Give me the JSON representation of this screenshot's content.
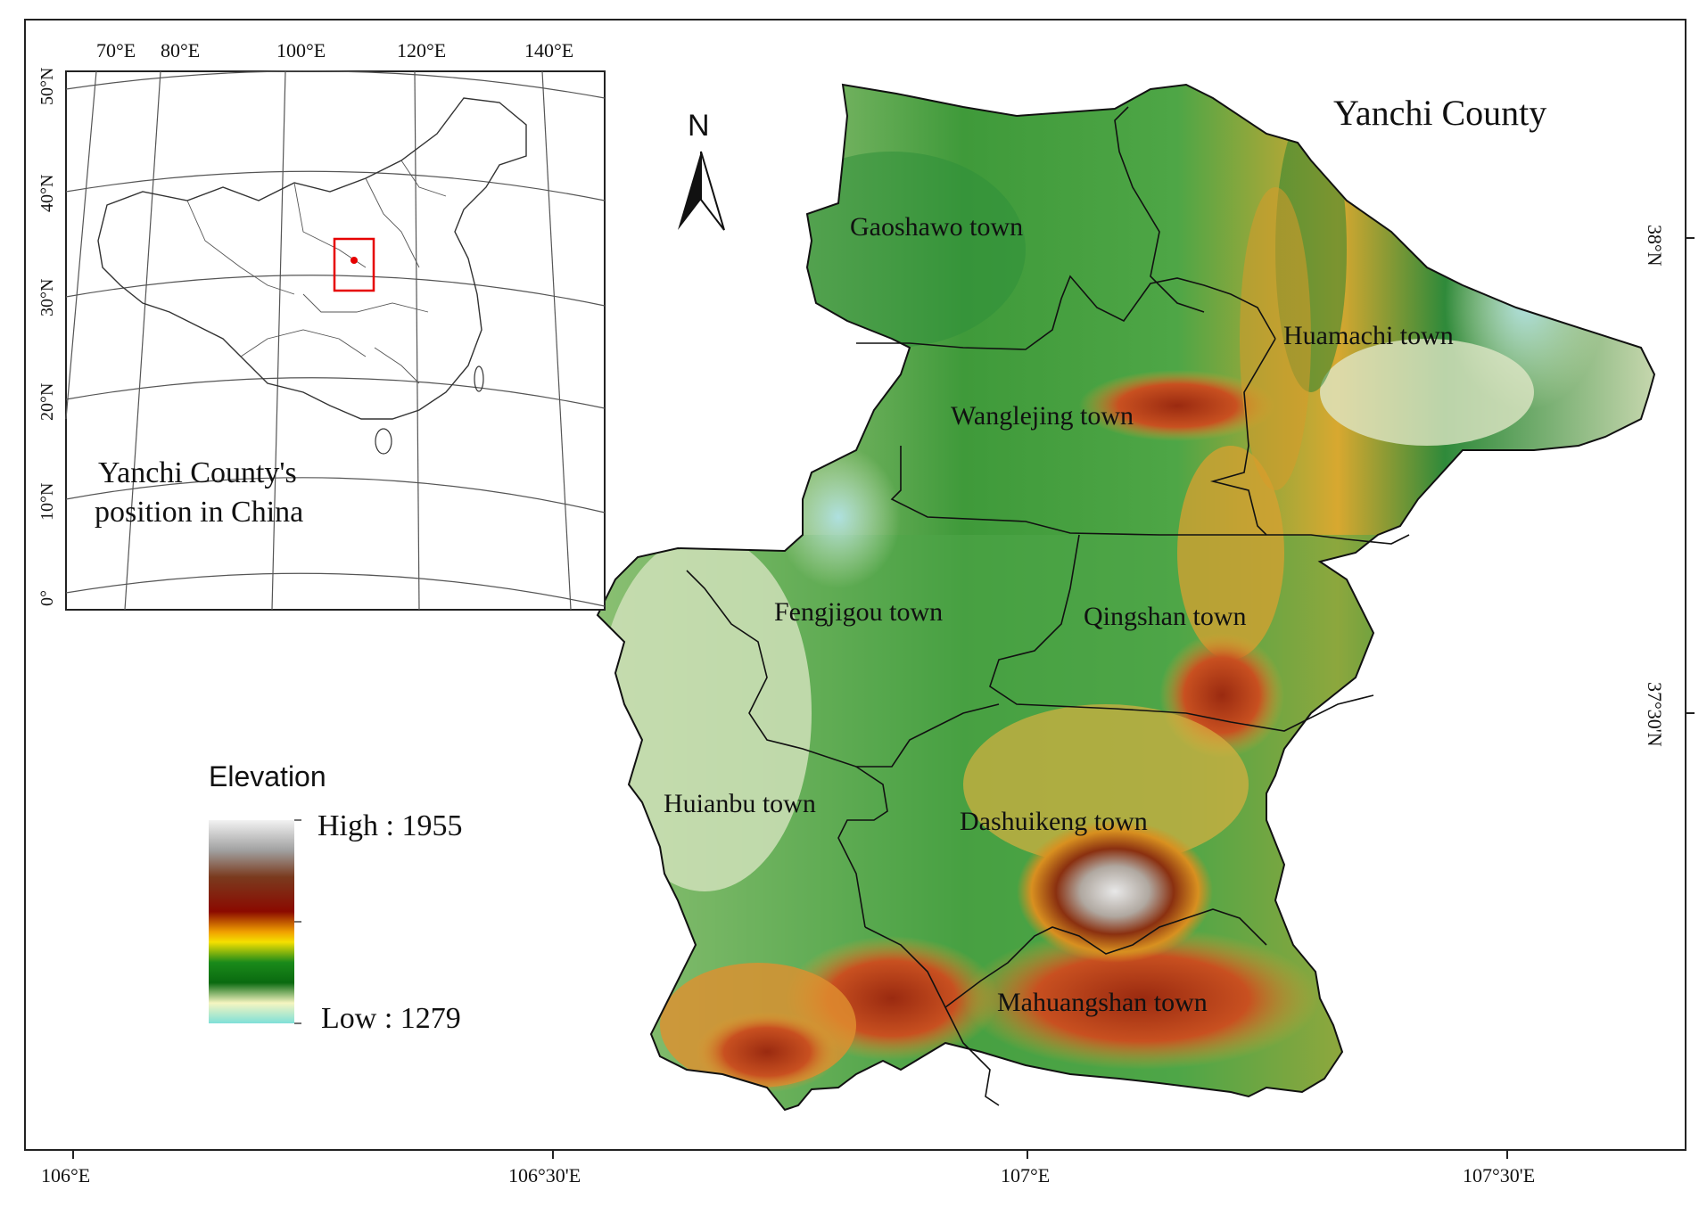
{
  "map": {
    "title": "Yanchi County",
    "north_label": "N",
    "bottom_ticks": [
      "106°E",
      "106°30'E",
      "107°E",
      "107°30'E"
    ],
    "right_ticks": [
      "38°N",
      "37°30'N"
    ],
    "towns": [
      "Gaoshawo town",
      "Huamachi town",
      "Wanglejing town",
      "Fengjigou town",
      "Qingshan town",
      "Huianbu town",
      "Dashuikeng town",
      "Mahuangshan town"
    ]
  },
  "inset": {
    "caption_line1": "Yanchi County's",
    "caption_line2": "position in China",
    "top_ticks": [
      "70°E",
      "80°E",
      "100°E",
      "120°E",
      "140°E"
    ],
    "left_ticks": [
      "50°N",
      "40°N",
      "30°N",
      "20°N",
      "10°N",
      "0°"
    ],
    "highlight_color": "#e60000"
  },
  "legend": {
    "title": "Elevation",
    "high_label": "High : 1955",
    "low_label": "Low : 1279",
    "ramp_colors": [
      "#f2f2f2",
      "#a0a0a0",
      "#7a3a1e",
      "#8b0a00",
      "#f0a000",
      "#f5e000",
      "#1a8a1a",
      "#0a6a10",
      "#f5f5c0",
      "#7fe0d8"
    ]
  }
}
